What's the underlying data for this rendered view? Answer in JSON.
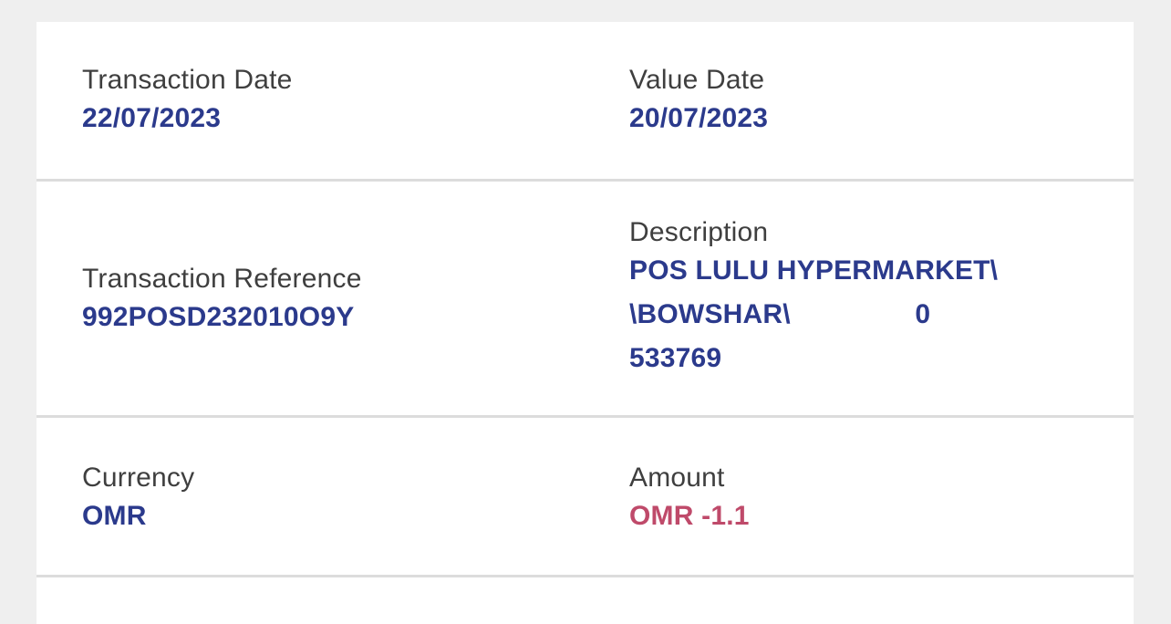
{
  "screen": "transaction-details",
  "colors": {
    "page_background": "#efefef",
    "card_background": "#ffffff",
    "divider": "#dcdcdc",
    "label_text": "#3f3f3f",
    "value_primary": "#2b3a8c",
    "value_negative": "#bf4a6a"
  },
  "card": {
    "rows": [
      {
        "fields": [
          {
            "label": "Transaction Date",
            "value": "22/07/2023"
          },
          {
            "label": "Value Date",
            "value": "20/07/2023"
          }
        ]
      },
      {
        "fields": [
          {
            "label": "Transaction Reference",
            "value": "992POSD232010O9Y"
          },
          {
            "label": "Description",
            "value": "POS LULU HYPERMARKET\\\n\\BOWSHAR\\                0\n533769"
          }
        ]
      },
      {
        "fields": [
          {
            "label": "Currency",
            "value": "OMR"
          },
          {
            "label": "Amount",
            "value": "OMR -1.1",
            "negative": true
          }
        ]
      }
    ]
  }
}
